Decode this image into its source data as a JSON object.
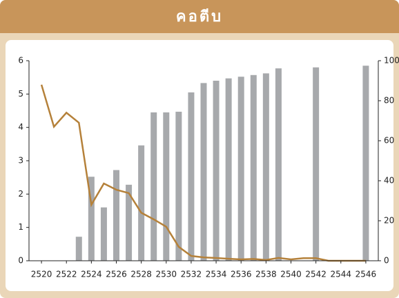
{
  "chart_data": {
    "type": "bar_line",
    "title": "คอตีบ",
    "categories": [
      2520,
      null,
      2522,
      null,
      2524,
      null,
      2526,
      null,
      2528,
      null,
      2530,
      null,
      2532,
      null,
      2534,
      null,
      2536,
      null,
      2538,
      null,
      2540,
      null,
      2542,
      null,
      2544,
      null,
      2546
    ],
    "series": [
      {
        "type": "bar",
        "color": "#a7a9ac",
        "axis": "y",
        "values": [
          null,
          null,
          null,
          0.72,
          2.52,
          1.6,
          2.72,
          2.28,
          3.46,
          4.45,
          4.45,
          4.47,
          5.05,
          5.33,
          5.4,
          5.47,
          5.52,
          5.57,
          5.62,
          5.77,
          null,
          null,
          5.8,
          null,
          null,
          null,
          5.85
        ]
      },
      {
        "type": "line",
        "color": "#b5813a",
        "axis": "y2",
        "values": [
          88,
          67,
          74,
          69,
          28,
          38.6,
          35.5,
          33.8,
          24,
          20.7,
          17,
          7,
          2.4,
          1.7,
          1.4,
          1,
          0.7,
          0.9,
          0.4,
          1.4,
          0.7,
          1.3,
          1.3,
          0,
          0,
          0,
          0
        ]
      }
    ],
    "ylim": [
      0,
      6
    ],
    "yticks": [
      0,
      1,
      2,
      3,
      4,
      5,
      6
    ],
    "y2lim": [
      0,
      100
    ],
    "y2ticks": [
      0,
      20,
      40,
      60,
      80,
      100
    ]
  }
}
